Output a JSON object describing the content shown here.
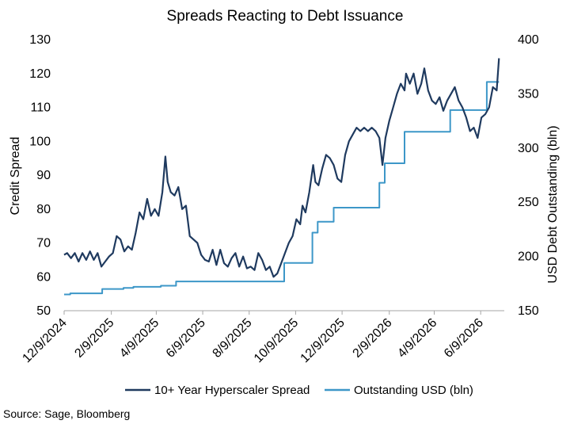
{
  "chart_data": {
    "type": "line",
    "title": "Spreads Reacting to Debt Issuance",
    "ylabel": "Credit Spread",
    "y2label": "USD Debt Outstanding (bln)",
    "xlabel": "",
    "x_ticks": [
      "12/9/2024",
      "2/9/2025",
      "4/9/2025",
      "6/9/2025",
      "8/9/2025",
      "10/9/2025",
      "12/9/2025",
      "2/9/2026",
      "4/9/2026",
      "6/9/2026"
    ],
    "ylim": [
      50,
      130
    ],
    "y_ticks": [
      50,
      60,
      70,
      80,
      90,
      100,
      110,
      120,
      130
    ],
    "y2lim": [
      150,
      400
    ],
    "y2_ticks": [
      150,
      200,
      250,
      300,
      350,
      400
    ],
    "grid": false,
    "legend": "bottom",
    "series": [
      {
        "name": "10+ Year Hyperscaler Spread",
        "axis": "left",
        "color": "#1f3a5f",
        "points": [
          [
            "2024-12-09",
            66.5
          ],
          [
            "2024-12-13",
            67
          ],
          [
            "2024-12-18",
            65.5
          ],
          [
            "2024-12-23",
            67
          ],
          [
            "2024-12-28",
            64.5
          ],
          [
            "2025-01-02",
            67
          ],
          [
            "2025-01-07",
            65
          ],
          [
            "2025-01-12",
            67.5
          ],
          [
            "2025-01-17",
            65
          ],
          [
            "2025-01-22",
            67
          ],
          [
            "2025-01-27",
            63
          ],
          [
            "2025-02-01",
            64.5
          ],
          [
            "2025-02-06",
            66
          ],
          [
            "2025-02-11",
            67
          ],
          [
            "2025-02-16",
            72
          ],
          [
            "2025-02-21",
            71
          ],
          [
            "2025-02-26",
            67.5
          ],
          [
            "2025-03-03",
            69
          ],
          [
            "2025-03-08",
            68
          ],
          [
            "2025-03-13",
            73
          ],
          [
            "2025-03-18",
            79
          ],
          [
            "2025-03-23",
            77
          ],
          [
            "2025-03-28",
            83
          ],
          [
            "2025-04-02",
            78
          ],
          [
            "2025-04-07",
            80
          ],
          [
            "2025-04-12",
            78
          ],
          [
            "2025-04-17",
            85
          ],
          [
            "2025-04-21",
            95.5
          ],
          [
            "2025-04-24",
            88
          ],
          [
            "2025-04-28",
            85
          ],
          [
            "2025-05-03",
            84
          ],
          [
            "2025-05-08",
            86.5
          ],
          [
            "2025-05-13",
            80
          ],
          [
            "2025-05-18",
            81
          ],
          [
            "2025-05-23",
            72
          ],
          [
            "2025-05-28",
            71
          ],
          [
            "2025-06-02",
            70
          ],
          [
            "2025-06-07",
            66.5
          ],
          [
            "2025-06-12",
            65
          ],
          [
            "2025-06-17",
            64.5
          ],
          [
            "2025-06-22",
            68
          ],
          [
            "2025-06-27",
            63.5
          ],
          [
            "2025-07-02",
            68
          ],
          [
            "2025-07-07",
            64
          ],
          [
            "2025-07-12",
            63
          ],
          [
            "2025-07-17",
            65.5
          ],
          [
            "2025-07-22",
            67
          ],
          [
            "2025-07-27",
            63
          ],
          [
            "2025-08-01",
            66
          ],
          [
            "2025-08-06",
            62.5
          ],
          [
            "2025-08-11",
            63
          ],
          [
            "2025-08-16",
            62
          ],
          [
            "2025-08-21",
            67
          ],
          [
            "2025-08-26",
            65
          ],
          [
            "2025-08-31",
            62
          ],
          [
            "2025-09-05",
            63
          ],
          [
            "2025-09-10",
            60
          ],
          [
            "2025-09-15",
            61
          ],
          [
            "2025-09-20",
            64
          ],
          [
            "2025-09-25",
            67
          ],
          [
            "2025-09-30",
            70
          ],
          [
            "2025-10-05",
            72
          ],
          [
            "2025-10-10",
            77
          ],
          [
            "2025-10-15",
            75.5
          ],
          [
            "2025-10-18",
            81
          ],
          [
            "2025-10-22",
            79
          ],
          [
            "2025-10-27",
            85
          ],
          [
            "2025-11-01",
            93
          ],
          [
            "2025-11-04",
            88
          ],
          [
            "2025-11-08",
            87
          ],
          [
            "2025-11-13",
            92
          ],
          [
            "2025-11-18",
            96
          ],
          [
            "2025-11-23",
            95
          ],
          [
            "2025-11-28",
            93
          ],
          [
            "2025-12-03",
            89
          ],
          [
            "2025-12-08",
            88
          ],
          [
            "2025-12-13",
            96
          ],
          [
            "2025-12-18",
            100
          ],
          [
            "2025-12-23",
            102
          ],
          [
            "2025-12-28",
            104
          ],
          [
            "2026-01-02",
            103
          ],
          [
            "2026-01-07",
            104
          ],
          [
            "2026-01-12",
            103
          ],
          [
            "2026-01-17",
            104
          ],
          [
            "2026-01-22",
            103
          ],
          [
            "2026-01-27",
            101
          ],
          [
            "2026-01-31",
            93
          ],
          [
            "2026-02-04",
            101
          ],
          [
            "2026-02-09",
            106
          ],
          [
            "2026-02-14",
            110
          ],
          [
            "2026-02-19",
            114
          ],
          [
            "2026-02-24",
            117
          ],
          [
            "2026-03-01",
            115
          ],
          [
            "2026-03-03",
            120
          ],
          [
            "2026-03-08",
            117
          ],
          [
            "2026-03-13",
            120
          ],
          [
            "2026-03-18",
            114
          ],
          [
            "2026-03-23",
            117
          ],
          [
            "2026-03-27",
            121.5
          ],
          [
            "2026-04-01",
            115
          ],
          [
            "2026-04-06",
            112
          ],
          [
            "2026-04-11",
            111
          ],
          [
            "2026-04-16",
            113
          ],
          [
            "2026-04-21",
            109
          ],
          [
            "2026-04-26",
            112
          ],
          [
            "2026-05-01",
            114
          ],
          [
            "2026-05-06",
            116
          ],
          [
            "2026-05-11",
            112
          ],
          [
            "2026-05-16",
            110
          ],
          [
            "2026-05-21",
            107
          ],
          [
            "2026-05-26",
            103
          ],
          [
            "2026-05-31",
            104
          ],
          [
            "2026-06-05",
            101
          ],
          [
            "2026-06-10",
            107
          ],
          [
            "2026-06-15",
            108
          ],
          [
            "2026-06-20",
            110
          ],
          [
            "2026-06-25",
            116
          ],
          [
            "2026-06-30",
            115
          ],
          [
            "2026-07-03",
            124.5
          ]
        ]
      },
      {
        "name": "Outstanding USD (bln)",
        "axis": "right",
        "color": "#3d97c8",
        "points": [
          [
            "2024-12-09",
            165
          ],
          [
            "2024-12-17",
            166
          ],
          [
            "2025-01-28",
            170
          ],
          [
            "2025-02-25",
            171
          ],
          [
            "2025-03-10",
            172
          ],
          [
            "2025-04-15",
            173
          ],
          [
            "2025-05-05",
            177
          ],
          [
            "2025-09-23",
            177
          ],
          [
            "2025-09-24",
            194
          ],
          [
            "2025-10-30",
            194
          ],
          [
            "2025-10-31",
            222
          ],
          [
            "2025-11-07",
            232
          ],
          [
            "2025-11-28",
            245
          ],
          [
            "2026-01-26",
            245
          ],
          [
            "2026-01-27",
            268
          ],
          [
            "2026-02-03",
            286
          ],
          [
            "2026-02-26",
            286
          ],
          [
            "2026-03-01",
            315
          ],
          [
            "2026-04-29",
            315
          ],
          [
            "2026-04-30",
            335
          ],
          [
            "2026-06-12",
            335
          ],
          [
            "2026-06-17",
            361
          ],
          [
            "2026-07-03",
            361
          ]
        ]
      }
    ]
  },
  "source": "Source: Sage, Bloomberg"
}
